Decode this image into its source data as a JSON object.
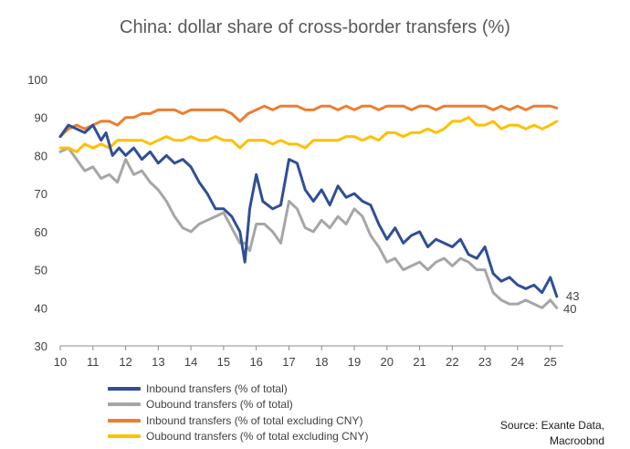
{
  "chart_data": {
    "type": "line",
    "title": "China: dollar share of cross-border transfers (%)",
    "xlabel": "",
    "ylabel": "",
    "ylim": [
      30,
      100
    ],
    "yticks": [
      "30",
      "40",
      "50",
      "60",
      "70",
      "80",
      "90",
      "100"
    ],
    "xlim": [
      2010,
      2025.4
    ],
    "xticks": [
      "10",
      "11",
      "12",
      "13",
      "14",
      "15",
      "16",
      "17",
      "18",
      "19",
      "20",
      "21",
      "22",
      "23",
      "24",
      "25"
    ],
    "grid": false,
    "legend_position": "bottom-left",
    "end_labels": [
      "43",
      "40"
    ],
    "series": [
      {
        "name": "Inbound transfers (% of total)",
        "color": "#2F4F96",
        "x": [
          2010.0,
          2010.25,
          2010.5,
          2010.75,
          2011.0,
          2011.25,
          2011.4,
          2011.6,
          2011.8,
          2012.0,
          2012.25,
          2012.5,
          2012.75,
          2013.0,
          2013.25,
          2013.5,
          2013.75,
          2014.0,
          2014.25,
          2014.5,
          2014.75,
          2015.0,
          2015.25,
          2015.5,
          2015.65,
          2015.8,
          2016.0,
          2016.2,
          2016.5,
          2016.75,
          2017.0,
          2017.25,
          2017.5,
          2017.75,
          2018.0,
          2018.25,
          2018.5,
          2018.75,
          2019.0,
          2019.25,
          2019.5,
          2019.75,
          2020.0,
          2020.25,
          2020.5,
          2020.75,
          2021.0,
          2021.25,
          2021.5,
          2021.75,
          2022.0,
          2022.25,
          2022.5,
          2022.75,
          2023.0,
          2023.25,
          2023.5,
          2023.75,
          2024.0,
          2024.25,
          2024.5,
          2024.75,
          2025.0,
          2025.2
        ],
        "values": [
          85,
          88,
          87,
          86,
          88,
          84,
          86,
          80,
          82,
          80,
          82,
          79,
          81,
          78,
          80,
          78,
          79,
          77,
          73,
          70,
          66,
          66,
          64,
          60,
          52,
          66,
          75,
          68,
          66,
          67,
          79,
          78,
          71,
          68,
          71,
          67,
          72,
          69,
          70,
          68,
          67,
          62,
          58,
          61,
          57,
          59,
          60,
          56,
          58,
          57,
          56,
          58,
          54,
          53,
          56,
          49,
          47,
          48,
          46,
          45,
          46,
          44,
          48,
          43
        ]
      },
      {
        "name": "Oubound transfers (% of total)",
        "color": "#A6A6A6",
        "x": [
          2010.0,
          2010.25,
          2010.5,
          2010.75,
          2011.0,
          2011.25,
          2011.5,
          2011.75,
          2012.0,
          2012.25,
          2012.5,
          2012.75,
          2013.0,
          2013.25,
          2013.5,
          2013.75,
          2014.0,
          2014.25,
          2014.5,
          2014.75,
          2015.0,
          2015.25,
          2015.5,
          2015.65,
          2015.8,
          2016.0,
          2016.25,
          2016.5,
          2016.75,
          2017.0,
          2017.25,
          2017.5,
          2017.75,
          2018.0,
          2018.25,
          2018.5,
          2018.75,
          2019.0,
          2019.25,
          2019.5,
          2019.75,
          2020.0,
          2020.25,
          2020.5,
          2020.75,
          2021.0,
          2021.25,
          2021.5,
          2021.75,
          2022.0,
          2022.25,
          2022.5,
          2022.75,
          2023.0,
          2023.25,
          2023.5,
          2023.75,
          2024.0,
          2024.25,
          2024.5,
          2024.75,
          2025.0,
          2025.2
        ],
        "values": [
          81,
          82,
          79,
          76,
          77,
          74,
          75,
          73,
          79,
          75,
          76,
          73,
          71,
          68,
          64,
          61,
          60,
          62,
          63,
          64,
          65,
          61,
          57,
          57,
          55,
          62,
          62,
          60,
          57,
          68,
          66,
          61,
          60,
          63,
          61,
          64,
          62,
          66,
          64,
          59,
          56,
          52,
          53,
          50,
          51,
          52,
          50,
          52,
          53,
          51,
          53,
          52,
          50,
          50,
          44,
          42,
          41,
          41,
          42,
          41,
          40,
          42,
          40
        ]
      },
      {
        "name": "Inbound transfers (% of total excluding CNY)",
        "color": "#ED7D31",
        "x": [
          2010.0,
          2010.25,
          2010.5,
          2010.75,
          2011.0,
          2011.25,
          2011.5,
          2011.75,
          2012.0,
          2012.25,
          2012.5,
          2012.75,
          2013.0,
          2013.25,
          2013.5,
          2013.75,
          2014.0,
          2014.25,
          2014.5,
          2014.75,
          2015.0,
          2015.25,
          2015.5,
          2015.75,
          2016.0,
          2016.25,
          2016.5,
          2016.75,
          2017.0,
          2017.25,
          2017.5,
          2017.75,
          2018.0,
          2018.25,
          2018.5,
          2018.75,
          2019.0,
          2019.25,
          2019.5,
          2019.75,
          2020.0,
          2020.25,
          2020.5,
          2020.75,
          2021.0,
          2021.25,
          2021.5,
          2021.75,
          2022.0,
          2022.25,
          2022.5,
          2022.75,
          2023.0,
          2023.25,
          2023.5,
          2023.75,
          2024.0,
          2024.25,
          2024.5,
          2024.75,
          2025.0,
          2025.2
        ],
        "values": [
          85,
          87,
          88,
          87,
          88,
          89,
          89,
          88,
          90,
          90,
          91,
          91,
          92,
          92,
          92,
          91,
          92,
          92,
          92,
          92,
          92,
          91,
          89,
          91,
          92,
          93,
          92,
          93,
          93,
          93,
          92,
          92,
          93,
          93,
          92,
          93,
          92,
          93,
          93,
          92,
          93,
          93,
          93,
          92,
          93,
          93,
          92,
          93,
          93,
          93,
          93,
          93,
          93,
          92,
          93,
          92,
          93,
          92,
          93,
          93,
          93,
          92.5
        ]
      },
      {
        "name": "Oubound transfers (% of total excluding CNY)",
        "color": "#FFC000",
        "x": [
          2010.0,
          2010.25,
          2010.5,
          2010.75,
          2011.0,
          2011.25,
          2011.5,
          2011.75,
          2012.0,
          2012.25,
          2012.5,
          2012.75,
          2013.0,
          2013.25,
          2013.5,
          2013.75,
          2014.0,
          2014.25,
          2014.5,
          2014.75,
          2015.0,
          2015.25,
          2015.5,
          2015.75,
          2016.0,
          2016.25,
          2016.5,
          2016.75,
          2017.0,
          2017.25,
          2017.5,
          2017.75,
          2018.0,
          2018.25,
          2018.5,
          2018.75,
          2019.0,
          2019.25,
          2019.5,
          2019.75,
          2020.0,
          2020.25,
          2020.5,
          2020.75,
          2021.0,
          2021.25,
          2021.5,
          2021.75,
          2022.0,
          2022.25,
          2022.5,
          2022.75,
          2023.0,
          2023.25,
          2023.5,
          2023.75,
          2024.0,
          2024.25,
          2024.5,
          2024.75,
          2025.0,
          2025.2
        ],
        "values": [
          82,
          82,
          81,
          83,
          82,
          83,
          82,
          84,
          84,
          84,
          84,
          83,
          84,
          85,
          84,
          84,
          85,
          84,
          84,
          85,
          84,
          84,
          82,
          84,
          84,
          84,
          83,
          84,
          83,
          83,
          82,
          84,
          84,
          84,
          84,
          85,
          85,
          84,
          85,
          84,
          86,
          86,
          85,
          86,
          86,
          87,
          86,
          87,
          89,
          89,
          90,
          88,
          88,
          89,
          87,
          88,
          88,
          87,
          88,
          87,
          88,
          89
        ]
      }
    ]
  },
  "source": {
    "line1": "Source: Exante Data,",
    "line2": "Macroobnd"
  }
}
